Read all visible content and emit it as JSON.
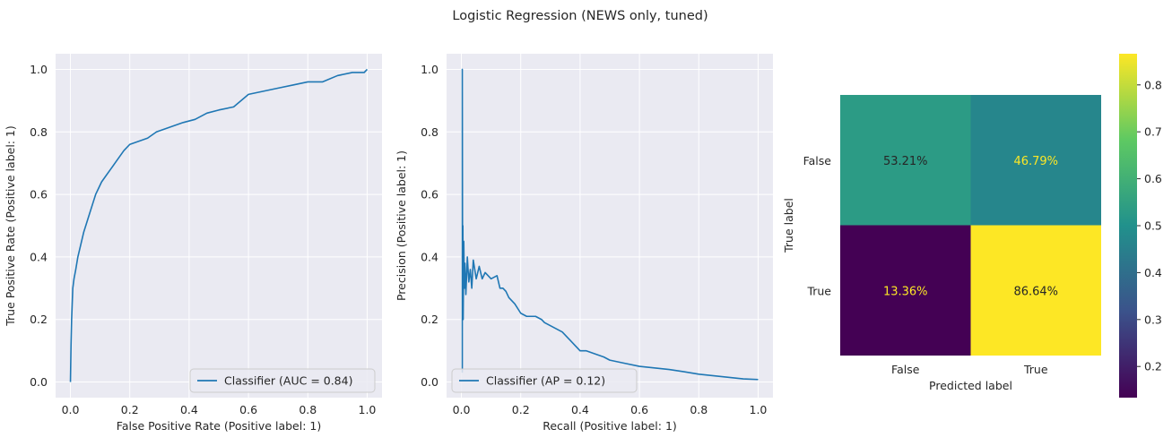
{
  "figure": {
    "title": "Logistic Regression (NEWS only, tuned)"
  },
  "chart_data": [
    {
      "type": "line",
      "xlabel": "False Positive Rate (Positive label: 1)",
      "ylabel": "True Positive Rate (Positive label: 1)",
      "xlim": [
        -0.05,
        1.05
      ],
      "ylim": [
        -0.05,
        1.05
      ],
      "xticks": [
        "0.0",
        "0.2",
        "0.4",
        "0.6",
        "0.8",
        "1.0"
      ],
      "yticks": [
        "0.0",
        "0.2",
        "0.4",
        "0.6",
        "0.8",
        "1.0"
      ],
      "grid": true,
      "legend_position": "lower-right",
      "color": "#1f77b4",
      "series": [
        {
          "name": "Classifier (AUC = 0.84)",
          "points": [
            [
              0,
              0
            ],
            [
              0.002,
              0.12
            ],
            [
              0.004,
              0.2
            ],
            [
              0.006,
              0.25
            ],
            [
              0.008,
              0.3
            ],
            [
              0.012,
              0.33
            ],
            [
              0.018,
              0.36
            ],
            [
              0.025,
              0.4
            ],
            [
              0.035,
              0.44
            ],
            [
              0.045,
              0.48
            ],
            [
              0.055,
              0.51
            ],
            [
              0.065,
              0.54
            ],
            [
              0.075,
              0.57
            ],
            [
              0.085,
              0.6
            ],
            [
              0.095,
              0.62
            ],
            [
              0.105,
              0.64
            ],
            [
              0.12,
              0.66
            ],
            [
              0.135,
              0.68
            ],
            [
              0.15,
              0.7
            ],
            [
              0.165,
              0.72
            ],
            [
              0.18,
              0.74
            ],
            [
              0.2,
              0.76
            ],
            [
              0.23,
              0.77
            ],
            [
              0.26,
              0.78
            ],
            [
              0.29,
              0.8
            ],
            [
              0.32,
              0.81
            ],
            [
              0.35,
              0.82
            ],
            [
              0.38,
              0.83
            ],
            [
              0.42,
              0.84
            ],
            [
              0.46,
              0.86
            ],
            [
              0.5,
              0.87
            ],
            [
              0.55,
              0.88
            ],
            [
              0.6,
              0.92
            ],
            [
              0.65,
              0.93
            ],
            [
              0.7,
              0.94
            ],
            [
              0.75,
              0.95
            ],
            [
              0.8,
              0.96
            ],
            [
              0.85,
              0.96
            ],
            [
              0.9,
              0.98
            ],
            [
              0.95,
              0.99
            ],
            [
              0.99,
              0.99
            ],
            [
              1,
              1
            ]
          ]
        }
      ]
    },
    {
      "type": "line",
      "xlabel": "Recall (Positive label: 1)",
      "ylabel": "Precision (Positive label: 1)",
      "xlim": [
        -0.05,
        1.05
      ],
      "ylim": [
        -0.05,
        1.05
      ],
      "xticks": [
        "0.0",
        "0.2",
        "0.4",
        "0.6",
        "0.8",
        "1.0"
      ],
      "yticks": [
        "0.0",
        "0.2",
        "0.4",
        "0.6",
        "0.8",
        "1.0"
      ],
      "grid": true,
      "legend_position": "lower-left",
      "color": "#1f77b4",
      "series": [
        {
          "name": "Classifier (AP = 0.12)",
          "points": [
            [
              0.003,
              0.03
            ],
            [
              0.003,
              1.0
            ],
            [
              0.004,
              0.3
            ],
            [
              0.005,
              0.5
            ],
            [
              0.006,
              0.2
            ],
            [
              0.008,
              0.45
            ],
            [
              0.01,
              0.3
            ],
            [
              0.012,
              0.38
            ],
            [
              0.015,
              0.28
            ],
            [
              0.018,
              0.35
            ],
            [
              0.02,
              0.4
            ],
            [
              0.025,
              0.32
            ],
            [
              0.03,
              0.36
            ],
            [
              0.035,
              0.3
            ],
            [
              0.04,
              0.39
            ],
            [
              0.05,
              0.33
            ],
            [
              0.06,
              0.37
            ],
            [
              0.07,
              0.33
            ],
            [
              0.08,
              0.35
            ],
            [
              0.1,
              0.33
            ],
            [
              0.12,
              0.34
            ],
            [
              0.13,
              0.3
            ],
            [
              0.14,
              0.3
            ],
            [
              0.15,
              0.29
            ],
            [
              0.16,
              0.27
            ],
            [
              0.18,
              0.25
            ],
            [
              0.2,
              0.22
            ],
            [
              0.22,
              0.21
            ],
            [
              0.25,
              0.21
            ],
            [
              0.27,
              0.2
            ],
            [
              0.28,
              0.19
            ],
            [
              0.3,
              0.18
            ],
            [
              0.32,
              0.17
            ],
            [
              0.34,
              0.16
            ],
            [
              0.36,
              0.14
            ],
            [
              0.38,
              0.12
            ],
            [
              0.4,
              0.1
            ],
            [
              0.42,
              0.1
            ],
            [
              0.45,
              0.09
            ],
            [
              0.48,
              0.08
            ],
            [
              0.5,
              0.07
            ],
            [
              0.55,
              0.06
            ],
            [
              0.6,
              0.05
            ],
            [
              0.65,
              0.045
            ],
            [
              0.7,
              0.04
            ],
            [
              0.75,
              0.033
            ],
            [
              0.8,
              0.025
            ],
            [
              0.85,
              0.02
            ],
            [
              0.9,
              0.015
            ],
            [
              0.95,
              0.01
            ],
            [
              1.0,
              0.008
            ]
          ]
        }
      ]
    },
    {
      "type": "heatmap",
      "xlabel": "Predicted label",
      "ylabel": "True label",
      "x_categories": [
        "False",
        "True"
      ],
      "y_categories": [
        "False",
        "True"
      ],
      "values": [
        [
          0.5321,
          0.4679
        ],
        [
          0.1336,
          0.8664
        ]
      ],
      "labels": [
        [
          "53.21%",
          "46.79%"
        ],
        [
          "13.36%",
          "86.64%"
        ]
      ],
      "text_colors": [
        [
          "#262626",
          "#fde725"
        ],
        [
          "#fde725",
          "#262626"
        ]
      ],
      "colormap": "viridis",
      "colorbar": {
        "range": [
          0.1336,
          0.8664
        ],
        "ticks": [
          {
            "value": 0.2,
            "label": "0.2"
          },
          {
            "value": 0.3,
            "label": "0.3"
          },
          {
            "value": 0.4,
            "label": "0.4"
          },
          {
            "value": 0.5,
            "label": "0.5"
          },
          {
            "value": 0.6,
            "label": "0.6"
          },
          {
            "value": 0.7,
            "label": "0.7"
          },
          {
            "value": 0.8,
            "label": "0.8"
          }
        ]
      }
    }
  ]
}
